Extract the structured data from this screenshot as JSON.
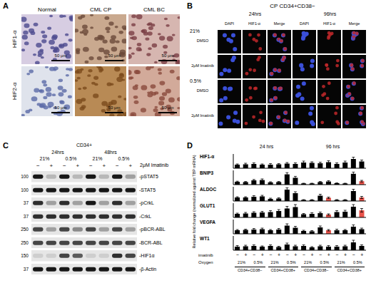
{
  "panels": {
    "A": {
      "label": "A",
      "columns": [
        "Normal",
        "CML CP",
        "CML BC"
      ],
      "rows": [
        "HIF1-α",
        "HIF2-α"
      ],
      "scale_bar": "50 μm"
    },
    "B": {
      "label": "B",
      "title": "CP CD34+CD38−",
      "times": [
        "24hrs",
        "96hrs"
      ],
      "channels": [
        "DAPI",
        "HIF1-α",
        "Merge"
      ],
      "oxygen": [
        "21%",
        "0.5%"
      ],
      "treatments": [
        "DMSO",
        "2μM Imatinib"
      ]
    },
    "C": {
      "label": "C",
      "title": "CD34+",
      "times": [
        "24hrs",
        "48hrs"
      ],
      "oxygen": [
        "21%",
        "0.5%"
      ],
      "treatment_label": "2μM Imatinib",
      "treatment": [
        "−",
        "+"
      ],
      "rows": [
        {
          "name": "-pSTAT5",
          "mw": 100,
          "bands": [
            0.9,
            0.2,
            0.9,
            0.2,
            0.9,
            0.2,
            0.9,
            0.3
          ]
        },
        {
          "name": "-STAT5",
          "mw": 100,
          "bands": [
            0.9,
            0.9,
            0.9,
            0.9,
            0.9,
            0.9,
            0.9,
            0.9
          ]
        },
        {
          "name": "-pCrkL",
          "mw": 37,
          "bands": [
            0.8,
            0.3,
            0.8,
            0.3,
            0.9,
            0.3,
            0.8,
            0.3
          ]
        },
        {
          "name": "-CrkL",
          "mw": 37,
          "bands": [
            0.8,
            0.8,
            0.8,
            0.8,
            0.8,
            0.8,
            0.8,
            0.8
          ]
        },
        {
          "name": "-pBCR-ABL",
          "mw": 250,
          "bands": [
            0.7,
            0.3,
            0.7,
            0.4,
            0.7,
            0.3,
            0.7,
            0.3
          ]
        },
        {
          "name": "-BCR-ABL",
          "mw": 250,
          "bands": [
            0.7,
            0.7,
            0.7,
            0.7,
            0.7,
            0.7,
            0.7,
            0.7
          ]
        },
        {
          "name": "-HIF1α",
          "mw": 150,
          "bands": [
            0.1,
            0.1,
            0.7,
            0.6,
            0.1,
            0.1,
            0.8,
            0.7
          ]
        },
        {
          "name": "-β-Actin",
          "mw": 37,
          "bands": [
            0.9,
            0.9,
            0.9,
            0.9,
            0.9,
            0.9,
            0.9,
            0.9
          ]
        }
      ]
    }
  },
  "chart_data": {
    "type": "bar",
    "label": "D",
    "ylabel": "Relative fold change (normalized against TBP mRNA)",
    "time_labels": [
      "24 hrs",
      "96 hrs"
    ],
    "imatinib_label": "imatinib",
    "imatinib": [
      "−",
      "+",
      "−",
      "+",
      "−",
      "+",
      "−",
      "+",
      "−",
      "+",
      "−",
      "+",
      "−",
      "+",
      "−",
      "+"
    ],
    "oxygen_label": "Oxygen",
    "oxygen": [
      "21%",
      "0.5%",
      "21%",
      "0.5%",
      "21%",
      "0.5%",
      "21%",
      "0.5%"
    ],
    "populations": [
      "CD34+CD38−",
      "CD34+CD38+",
      "CD34+CD38−",
      "CD34+CD38+"
    ],
    "tick_labels": false,
    "series": [
      {
        "name": "HIF1-α",
        "ylim": [
          0,
          4
        ],
        "values": [
          1.0,
          1.1,
          1.2,
          1.0,
          1.0,
          1.1,
          1.3,
          1.2,
          1.6,
          1.5,
          1.4,
          1.7,
          1.2,
          1.6,
          2.6,
          1.9
        ],
        "errors": [
          0.2,
          0.3,
          0.3,
          0.2,
          0.3,
          0.2,
          0.3,
          0.3,
          0.4,
          0.3,
          0.3,
          0.4,
          0.3,
          0.4,
          0.5,
          0.4
        ],
        "colors": [
          "#000000",
          "#000000",
          "#000000",
          "#000000",
          "#000000",
          "#000000",
          "#000000",
          "#000000",
          "#000000",
          "#000000",
          "#000000",
          "#000000",
          "#000000",
          "#000000",
          "#000000",
          "#000000"
        ]
      },
      {
        "name": "BNIP3",
        "ylim": [
          0,
          5
        ],
        "values": [
          1.0,
          0.9,
          1.5,
          1.6,
          0.8,
          0.9,
          3.6,
          2.4,
          0.4,
          0.4,
          0.9,
          1.1,
          0.5,
          0.4,
          3.8,
          1.2
        ],
        "errors": [
          0.2,
          0.2,
          0.3,
          0.4,
          0.2,
          0.2,
          0.6,
          0.5,
          0.1,
          0.1,
          0.2,
          0.3,
          0.1,
          0.1,
          0.6,
          0.3
        ],
        "colors": [
          "#000000",
          "#000000",
          "#000000",
          "#000000",
          "#000000",
          "#000000",
          "#000000",
          "#000000",
          "#000000",
          "#000000",
          "#000000",
          "#000000",
          "#000000",
          "#000000",
          "#000000",
          "#e8534a"
        ]
      },
      {
        "name": "ALDOC",
        "ylim": [
          0,
          4
        ],
        "values": [
          1.0,
          1.0,
          1.2,
          1.3,
          0.6,
          0.7,
          3.2,
          2.2,
          0.3,
          0.3,
          1.5,
          0.9,
          0.3,
          0.3,
          2.8,
          1.0
        ],
        "errors": [
          0.2,
          0.2,
          0.3,
          0.3,
          0.2,
          0.2,
          0.5,
          0.4,
          0.1,
          0.1,
          0.4,
          0.2,
          0.1,
          0.1,
          0.5,
          0.3
        ],
        "colors": [
          "#000000",
          "#000000",
          "#000000",
          "#000000",
          "#000000",
          "#000000",
          "#000000",
          "#000000",
          "#000000",
          "#000000",
          "#000000",
          "#e8534a",
          "#000000",
          "#000000",
          "#000000",
          "#e8534a"
        ]
      },
      {
        "name": "GLUT1",
        "ylim": [
          0,
          4
        ],
        "values": [
          1.0,
          1.1,
          1.3,
          1.4,
          1.5,
          1.8,
          2.5,
          2.9,
          0.9,
          1.0,
          1.2,
          0.8,
          1.5,
          1.6,
          3.0,
          2.0
        ],
        "errors": [
          0.2,
          0.3,
          0.3,
          0.3,
          0.4,
          0.4,
          0.6,
          0.7,
          0.2,
          0.3,
          0.3,
          0.2,
          0.4,
          0.4,
          0.6,
          0.5
        ],
        "colors": [
          "#000000",
          "#000000",
          "#000000",
          "#000000",
          "#000000",
          "#000000",
          "#000000",
          "#000000",
          "#000000",
          "#000000",
          "#000000",
          "#e8534a",
          "#000000",
          "#000000",
          "#000000",
          "#e8534a"
        ]
      },
      {
        "name": "VEGFA",
        "ylim": [
          0,
          4
        ],
        "values": [
          1.0,
          1.1,
          1.2,
          1.3,
          1.0,
          1.2,
          2.3,
          1.7,
          0.8,
          0.7,
          1.8,
          1.0,
          1.0,
          1.0,
          2.0,
          1.3
        ],
        "errors": [
          0.2,
          0.2,
          0.3,
          0.3,
          0.2,
          0.3,
          0.5,
          0.4,
          0.2,
          0.2,
          0.4,
          0.2,
          0.3,
          0.2,
          0.5,
          0.3
        ],
        "colors": [
          "#000000",
          "#000000",
          "#000000",
          "#000000",
          "#000000",
          "#000000",
          "#000000",
          "#000000",
          "#000000",
          "#000000",
          "#000000",
          "#e8534a",
          "#000000",
          "#000000",
          "#000000",
          "#000000"
        ]
      },
      {
        "name": "WT1",
        "ylim": [
          0,
          4
        ],
        "values": [
          1.0,
          1.1,
          1.2,
          1.0,
          1.2,
          0.9,
          1.6,
          1.1,
          1.2,
          0.8,
          1.1,
          1.0,
          1.0,
          1.1,
          2.2,
          1.2
        ],
        "errors": [
          0.3,
          0.3,
          0.3,
          0.2,
          0.3,
          0.2,
          0.4,
          0.3,
          0.3,
          0.2,
          0.3,
          0.3,
          0.3,
          0.3,
          0.6,
          0.3
        ],
        "colors": [
          "#000000",
          "#000000",
          "#000000",
          "#000000",
          "#000000",
          "#000000",
          "#000000",
          "#000000",
          "#000000",
          "#000000",
          "#000000",
          "#000000",
          "#000000",
          "#000000",
          "#000000",
          "#000000"
        ]
      }
    ]
  }
}
